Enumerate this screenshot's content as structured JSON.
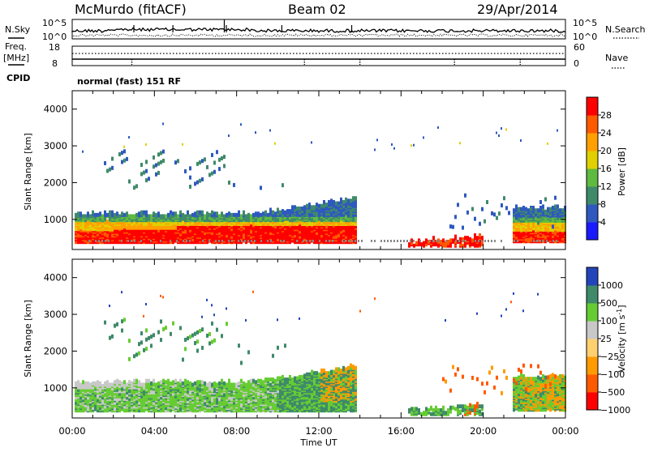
{
  "header": {
    "station": "McMurdo (fitACF)",
    "beam": "Beam 02",
    "date": "29/Apr/2014"
  },
  "top_panels": {
    "nsky_label": "N.Sky",
    "nsky_scale_top": "10^5",
    "nsky_scale_bottom": "10^0",
    "nsearch_label": "N.Search",
    "nsearch_scale_top": "10^5",
    "nsearch_scale_bottom": "10^0",
    "freq_label": "Freq.",
    "freq_unit": "[MHz]",
    "freq_top": "18",
    "freq_bottom": "8",
    "nave_label": "Nave",
    "nave_top": "60",
    "nave_bottom": "0",
    "cpid_label": "CPID",
    "cpid_text": "normal (fast) 151 RF"
  },
  "colors": {
    "power": [
      "#1a1aff",
      "#2f59bf",
      "#3f8a6a",
      "#5fba40",
      "#e0d000",
      "#ffa000",
      "#ff5a00",
      "#ff0000"
    ],
    "velocity": [
      "#ff0000",
      "#ff5a00",
      "#ff9a00",
      "#ffd070",
      "#c8c8c8",
      "#66cc33",
      "#3f8a6a",
      "#2244bb"
    ]
  },
  "chart_data": [
    {
      "type": "heatmap",
      "name_panel": "power",
      "ylabel": "Slant Range [km]",
      "xlabel": "",
      "x_ticks": [
        "00:00",
        "04:00",
        "08:00",
        "12:00",
        "16:00",
        "20:00",
        "00:00"
      ],
      "y_ticks": [
        1000,
        2000,
        3000,
        4000
      ],
      "ylim": [
        180,
        4500
      ],
      "xlim_hours": [
        0,
        24
      ],
      "colorbar_label": "Power [dB]",
      "colorbar_ticks": [
        "28",
        "24",
        "20",
        "16",
        "12",
        "8",
        "4"
      ]
    },
    {
      "type": "heatmap",
      "name_panel": "velocity",
      "ylabel": "Slant Range [km]",
      "xlabel": "Time UT",
      "x_ticks": [
        "00:00",
        "04:00",
        "08:00",
        "12:00",
        "16:00",
        "20:00",
        "00:00"
      ],
      "y_ticks": [
        1000,
        2000,
        3000,
        4000
      ],
      "ylim": [
        180,
        4500
      ],
      "xlim_hours": [
        0,
        24
      ],
      "colorbar_label": "Velocity [m s",
      "colorbar_label_sup": "-1",
      "colorbar_label_end": "]",
      "colorbar_ticks": [
        "1000",
        "500",
        "100",
        "25",
        "−25",
        "−100",
        "−500",
        "−1000"
      ]
    }
  ]
}
